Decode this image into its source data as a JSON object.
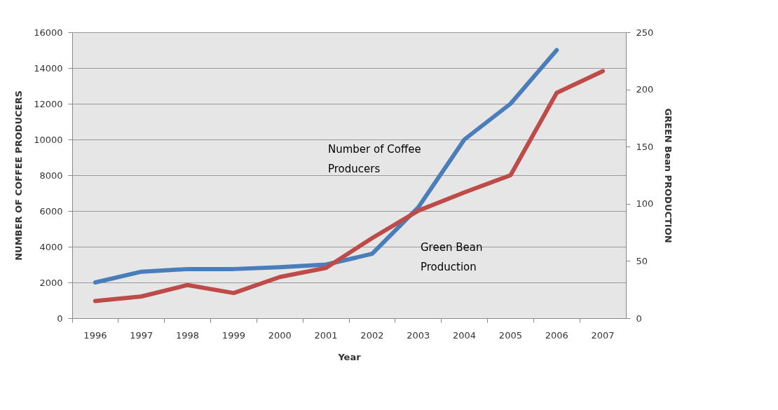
{
  "chart_data": {
    "type": "line",
    "xlabel": "Year",
    "ylabel": "NUMBER OF COFFEE PRODUCERS",
    "y2label": "GREEN Bean PRODUCTION",
    "categories": [
      "1996",
      "1997",
      "1998",
      "1999",
      "2000",
      "2001",
      "2002",
      "2003",
      "2004",
      "2005",
      "2006",
      "2007"
    ],
    "series": [
      {
        "name": "Number of Coffee Producers",
        "color": "#4a7ebb",
        "values": [
          2000,
          2600,
          2750,
          2750,
          2850,
          3000,
          3600,
          6200,
          10000,
          12000,
          15000,
          null
        ]
      },
      {
        "name": "Green Bean Production",
        "color": "#be4b48",
        "axis": "y2",
        "values": [
          15,
          19,
          29,
          22,
          36,
          44,
          70,
          94,
          110,
          125,
          197,
          216
        ]
      }
    ],
    "ylim": [
      0,
      16000
    ],
    "yticks": [
      0,
      2000,
      4000,
      6000,
      8000,
      10000,
      12000,
      14000,
      16000
    ],
    "y2lim": [
      0,
      250
    ],
    "y2ticks": [
      0,
      50,
      100,
      150,
      200,
      250
    ],
    "grid": "y",
    "marker": "none",
    "line_style": "solid"
  }
}
